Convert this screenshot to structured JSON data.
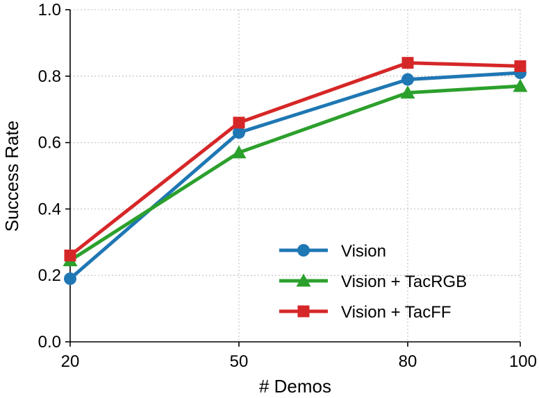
{
  "chart_data": {
    "type": "line",
    "title": "",
    "xlabel": "# Demos",
    "ylabel": "Success Rate",
    "x": [
      20,
      50,
      80,
      100
    ],
    "xlim": [
      20,
      100
    ],
    "ylim": [
      0.0,
      1.0
    ],
    "xticks": [
      "20",
      "50",
      "80",
      "100"
    ],
    "yticks": [
      "0.0",
      "0.2",
      "0.4",
      "0.6",
      "0.8",
      "1.0"
    ],
    "grid": true,
    "legend_position": "lower-right",
    "series": [
      {
        "name": "Vision",
        "color": "#1f77b4",
        "marker": "circle",
        "values": [
          0.19,
          0.63,
          0.79,
          0.81
        ]
      },
      {
        "name": "Vision + TacRGB",
        "color": "#2ca02c",
        "marker": "triangle",
        "values": [
          0.245,
          0.57,
          0.75,
          0.77
        ]
      },
      {
        "name": "Vision + TacFF",
        "color": "#d62728",
        "marker": "square",
        "values": [
          0.26,
          0.66,
          0.84,
          0.83
        ]
      }
    ]
  }
}
